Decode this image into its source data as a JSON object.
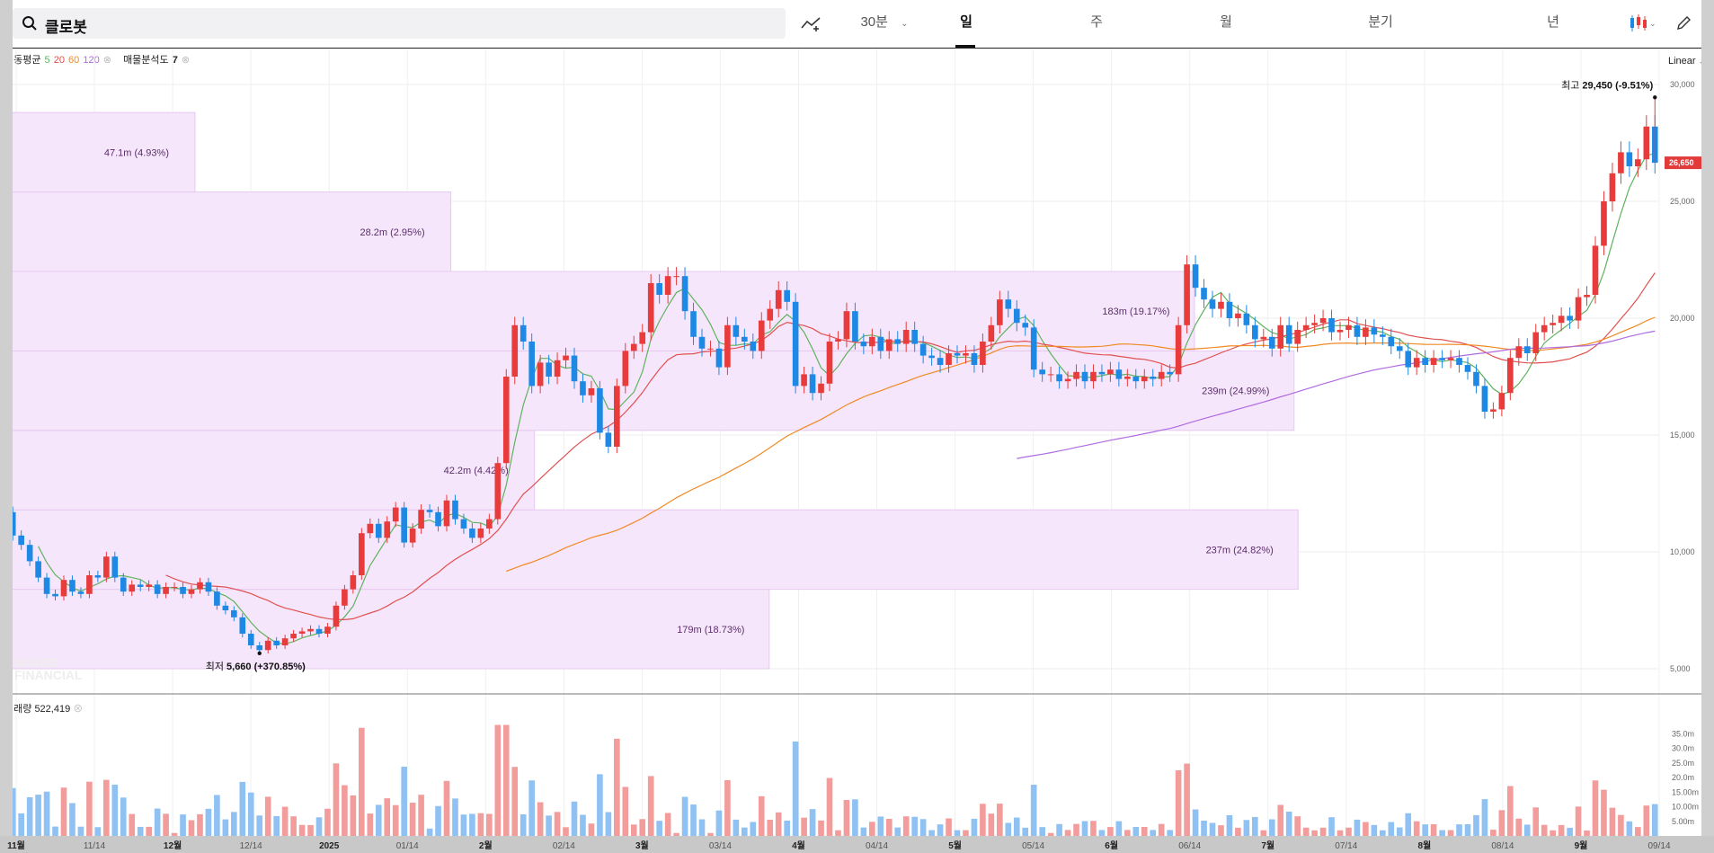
{
  "search": {
    "query": "클로봇"
  },
  "toolbar": {
    "interval_label": "30분",
    "periods": [
      "일",
      "주",
      "월",
      "분기",
      "년"
    ],
    "active_period": "일",
    "chart_icon": "candlestick-icon",
    "draw_icon": "pencil-icon",
    "indicator_icon": "indicator-add-icon"
  },
  "indicators": {
    "ma_label": "이동평균",
    "ma_periods": [
      "5",
      "20",
      "60",
      "120"
    ],
    "ma_colors": [
      "#5fb35f",
      "#e05050",
      "#f08a24",
      "#b06be0"
    ],
    "vp_label": "매물분석도",
    "vp_value": "7",
    "volume_label": "거래량",
    "volume_value": "522,419"
  },
  "scale_mode": "Linear",
  "annotations": {
    "high_label": "최고",
    "high_value": "29,450 (-9.51%)",
    "low_label": "최저",
    "low_value": "5,660 (+370.85%)",
    "current_price": "26,650"
  },
  "watermark": [
    "NAVER",
    "FINANCIAL"
  ],
  "colors": {
    "up": "#e83b3b",
    "down": "#1e88e5",
    "vp_fill": "#f6e6fb",
    "vp_stroke": "#e7c9f1"
  },
  "chart_data": {
    "type": "candlestick",
    "x_ticks": [
      "11월",
      "11/14",
      "12월",
      "12/14",
      "2025",
      "01/14",
      "2월",
      "02/14",
      "3월",
      "03/14",
      "4월",
      "04/14",
      "5월",
      "05/14",
      "6월",
      "06/14",
      "7월",
      "07/14",
      "8월",
      "08/14",
      "9월",
      "09/14"
    ],
    "y_ticks": [
      "5,000",
      "10,000",
      "15,000",
      "20,000",
      "25,000",
      "30,000"
    ],
    "ylim": [
      4000,
      31500
    ],
    "volume_ticks": [
      "5.00m",
      "10.00m",
      "15.00m",
      "20.0m",
      "25.0m",
      "30.0m",
      "35.0m"
    ],
    "volume_ylim": [
      0,
      40
    ],
    "volume_profile": [
      {
        "label": "179m (18.73%)",
        "price_low": 5000,
        "price_high": 8400,
        "ratio": 0.488
      },
      {
        "label": "237m (24.82%)",
        "price_low": 8400,
        "price_high": 11800,
        "ratio": 0.8235
      },
      {
        "label": "42.2m (4.42%)",
        "price_low": 11800,
        "price_high": 15200,
        "ratio": 0.3391
      },
      {
        "label": "239m (24.99%)",
        "price_low": 15200,
        "price_high": 18600,
        "ratio": 0.821
      },
      {
        "label": "183m (19.17%)",
        "price_low": 18600,
        "price_high": 22000,
        "ratio": 0.7578
      },
      {
        "label": "28.2m (2.95%)",
        "price_low": 22000,
        "price_high": 25400,
        "ratio": 0.286
      },
      {
        "label": "47.1m (4.93%)",
        "price_low": 25400,
        "price_high": 28800,
        "ratio": 0.1237
      }
    ],
    "closes": [
      11700,
      10700,
      10300,
      9600,
      8900,
      8200,
      8100,
      8800,
      8300,
      8200,
      9000,
      8900,
      9800,
      8900,
      8300,
      8600,
      8500,
      8600,
      8200,
      8500,
      8500,
      8200,
      8400,
      8700,
      8300,
      7700,
      7500,
      7200,
      6500,
      6000,
      5800,
      6200,
      6000,
      6300,
      6500,
      6600,
      6700,
      6500,
      6800,
      7700,
      8400,
      9000,
      10800,
      11200,
      10600,
      11300,
      11900,
      10400,
      11000,
      11800,
      11700,
      11100,
      12200,
      11400,
      11000,
      10600,
      11000,
      11400,
      13800,
      17500,
      19700,
      19000,
      17100,
      18100,
      17500,
      18200,
      18400,
      17300,
      16700,
      17000,
      15100,
      14500,
      17100,
      18600,
      18900,
      19400,
      21500,
      21000,
      21800,
      21800,
      20300,
      19200,
      18700,
      18700,
      17900,
      19700,
      19200,
      19000,
      18600,
      19900,
      20400,
      21200,
      20700,
      17100,
      17600,
      16800,
      17200,
      19000,
      19100,
      20300,
      19000,
      18800,
      19200,
      18600,
      19100,
      18900,
      19500,
      18900,
      18400,
      18300,
      18000,
      18500,
      18400,
      18500,
      18000,
      19000,
      19700,
      20800,
      20400,
      19800,
      19600,
      17800,
      17600,
      17600,
      17300,
      17400,
      17700,
      17300,
      17700,
      17600,
      17800,
      17400,
      17500,
      17300,
      17500,
      17400,
      17700,
      17600,
      19700,
      22300,
      21300,
      20800,
      20400,
      20700,
      20000,
      20200,
      19700,
      19100,
      19200,
      18700,
      19700,
      18900,
      19500,
      19700,
      19800,
      20000,
      19400,
      19500,
      19700,
      19200,
      19600,
      19300,
      19200,
      18800,
      18600,
      17900,
      18300,
      18000,
      18300,
      18200,
      18300,
      18000,
      17700,
      17100,
      16000,
      16100,
      16800,
      18300,
      18800,
      18500,
      19400,
      19700,
      19800,
      20100,
      19900,
      20900,
      21000,
      23100,
      25000,
      26200,
      27100,
      26500,
      26800,
      28200,
      26650
    ]
  }
}
